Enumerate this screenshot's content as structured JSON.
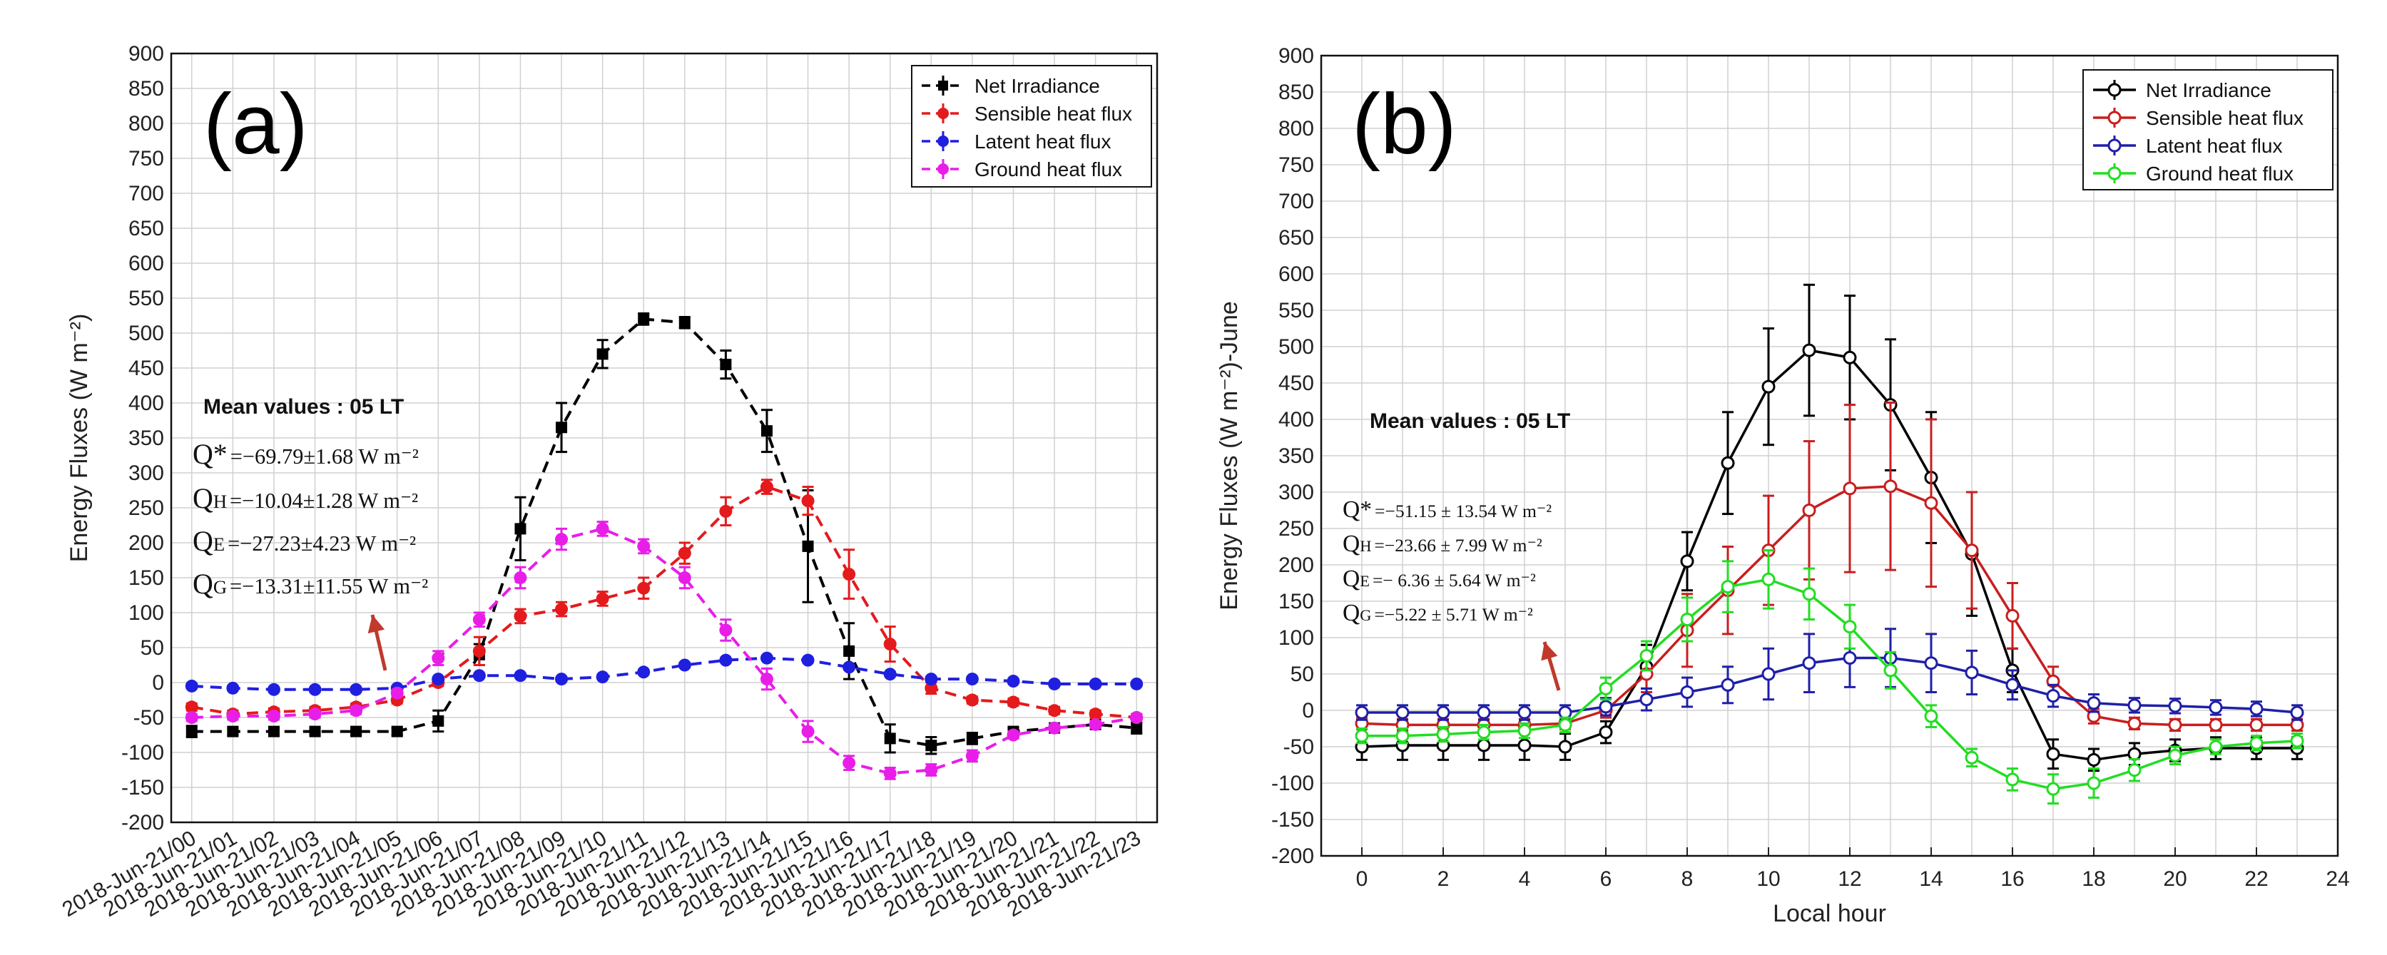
{
  "chart_data": [
    {
      "type": "line",
      "panel_label": "(a)",
      "ylabel": "Energy Fluxes (W m⁻²)",
      "xlabel": "",
      "ylim": [
        -200,
        900
      ],
      "yticks": [
        -200,
        -150,
        -100,
        -50,
        0,
        50,
        100,
        150,
        200,
        250,
        300,
        350,
        400,
        450,
        500,
        550,
        600,
        650,
        700,
        750,
        800,
        850,
        900
      ],
      "categories": [
        "2018-Jun-21/00",
        "2018-Jun-21/01",
        "2018-Jun-21/02",
        "2018-Jun-21/03",
        "2018-Jun-21/04",
        "2018-Jun-21/05",
        "2018-Jun-21/06",
        "2018-Jun-21/07",
        "2018-Jun-21/08",
        "2018-Jun-21/09",
        "2018-Jun-21/10",
        "2018-Jun-21/11",
        "2018-Jun-21/12",
        "2018-Jun-21/13",
        "2018-Jun-21/14",
        "2018-Jun-21/15",
        "2018-Jun-21/16",
        "2018-Jun-21/17",
        "2018-Jun-21/18",
        "2018-Jun-21/19",
        "2018-Jun-21/20",
        "2018-Jun-21/21",
        "2018-Jun-21/22",
        "2018-Jun-21/23"
      ],
      "grid": true,
      "legend_position": "top-right",
      "series": [
        {
          "name": "Net Irradiance",
          "color": "#000000",
          "dashed": true,
          "marker": "square",
          "values": [
            -70,
            -70,
            -70,
            -70,
            -70,
            -70,
            -55,
            40,
            220,
            365,
            470,
            520,
            515,
            455,
            360,
            195,
            45,
            -80,
            -90,
            -80,
            -70,
            -65,
            -60,
            -65
          ],
          "errors": [
            8,
            5,
            5,
            5,
            5,
            5,
            15,
            15,
            45,
            35,
            20,
            8,
            8,
            20,
            30,
            80,
            40,
            20,
            12,
            8,
            5,
            5,
            5,
            8
          ]
        },
        {
          "name": "Sensible heat flux",
          "color": "#e41a1c",
          "dashed": true,
          "marker": "circle",
          "values": [
            -35,
            -45,
            -42,
            -40,
            -35,
            -25,
            0,
            45,
            95,
            105,
            120,
            135,
            185,
            245,
            280,
            260,
            155,
            55,
            -8,
            -25,
            -28,
            -40,
            -45,
            -50
          ],
          "errors": [
            5,
            5,
            5,
            5,
            5,
            5,
            5,
            20,
            10,
            10,
            10,
            15,
            15,
            20,
            10,
            20,
            35,
            25,
            8,
            5,
            5,
            5,
            5,
            5
          ]
        },
        {
          "name": "Latent heat flux",
          "color": "#1f1fe0",
          "dashed": true,
          "marker": "circle",
          "values": [
            -5,
            -8,
            -10,
            -10,
            -10,
            -8,
            5,
            10,
            10,
            5,
            8,
            15,
            25,
            32,
            35,
            32,
            22,
            12,
            5,
            5,
            2,
            -2,
            -2,
            -2
          ],
          "errors": [
            3,
            3,
            3,
            3,
            3,
            3,
            3,
            3,
            3,
            3,
            3,
            3,
            3,
            3,
            3,
            3,
            3,
            3,
            3,
            3,
            3,
            3,
            3,
            3
          ]
        },
        {
          "name": "Ground heat flux",
          "color": "#e81ee8",
          "dashed": true,
          "marker": "circle",
          "values": [
            -50,
            -48,
            -48,
            -45,
            -40,
            -15,
            35,
            90,
            150,
            205,
            220,
            195,
            150,
            75,
            5,
            -70,
            -115,
            -130,
            -125,
            -105,
            -75,
            -65,
            -60,
            -50
          ],
          "errors": [
            5,
            5,
            5,
            5,
            5,
            5,
            10,
            10,
            15,
            15,
            10,
            10,
            15,
            15,
            15,
            15,
            10,
            8,
            8,
            8,
            5,
            5,
            5,
            5
          ]
        }
      ]
    },
    {
      "type": "line",
      "panel_label": "(b)",
      "ylabel": "Energy Fluxes (W m⁻²)-June",
      "xlabel": "Local hour",
      "ylim": [
        -200,
        900
      ],
      "xlim": [
        -1,
        24
      ],
      "yticks": [
        -200,
        -150,
        -100,
        -50,
        0,
        50,
        100,
        150,
        200,
        250,
        300,
        350,
        400,
        450,
        500,
        550,
        600,
        650,
        700,
        750,
        800,
        850,
        900
      ],
      "xticks": [
        0,
        2,
        4,
        6,
        8,
        10,
        12,
        14,
        16,
        18,
        20,
        22,
        24
      ],
      "grid": true,
      "legend_position": "top-right",
      "x": [
        0,
        1,
        2,
        3,
        4,
        5,
        6,
        7,
        8,
        9,
        10,
        11,
        12,
        13,
        14,
        15,
        16,
        17,
        18,
        19,
        20,
        21,
        22,
        23
      ],
      "series": [
        {
          "name": "Net Irradiance",
          "color": "#000000",
          "dashed": false,
          "marker": "open-circle",
          "values": [
            -50,
            -48,
            -48,
            -48,
            -48,
            -50,
            -30,
            60,
            205,
            340,
            445,
            495,
            485,
            420,
            320,
            215,
            55,
            -60,
            -68,
            -60,
            -55,
            -52,
            -52,
            -52
          ],
          "errors": [
            18,
            20,
            20,
            20,
            20,
            18,
            15,
            30,
            40,
            70,
            80,
            90,
            85,
            90,
            90,
            85,
            30,
            20,
            15,
            15,
            15,
            15,
            15,
            15
          ]
        },
        {
          "name": "Sensible heat flux",
          "color": "#c81e1e",
          "dashed": false,
          "marker": "open-circle",
          "values": [
            -18,
            -20,
            -20,
            -20,
            -20,
            -18,
            0,
            50,
            110,
            165,
            220,
            275,
            305,
            308,
            285,
            220,
            130,
            40,
            -8,
            -18,
            -20,
            -20,
            -20,
            -20
          ],
          "errors": [
            8,
            8,
            8,
            8,
            8,
            8,
            10,
            25,
            50,
            60,
            75,
            95,
            115,
            115,
            115,
            80,
            45,
            20,
            10,
            8,
            8,
            8,
            8,
            8
          ]
        },
        {
          "name": "Latent heat flux",
          "color": "#1f1fa8",
          "dashed": false,
          "marker": "open-circle",
          "values": [
            -3,
            -3,
            -3,
            -3,
            -3,
            -3,
            5,
            15,
            25,
            35,
            50,
            65,
            72,
            72,
            65,
            52,
            35,
            20,
            10,
            7,
            6,
            4,
            2,
            -3
          ],
          "errors": [
            10,
            10,
            10,
            10,
            10,
            10,
            12,
            15,
            20,
            25,
            35,
            40,
            40,
            40,
            40,
            30,
            20,
            15,
            12,
            10,
            10,
            10,
            10,
            10
          ]
        },
        {
          "name": "Ground heat flux",
          "color": "#22dd22",
          "dashed": false,
          "marker": "open-circle",
          "values": [
            -35,
            -35,
            -33,
            -30,
            -28,
            -20,
            30,
            75,
            125,
            170,
            180,
            160,
            115,
            55,
            -8,
            -65,
            -95,
            -108,
            -100,
            -82,
            -62,
            -50,
            -45,
            -42
          ],
          "errors": [
            10,
            10,
            10,
            10,
            10,
            10,
            15,
            20,
            30,
            35,
            40,
            35,
            30,
            25,
            15,
            12,
            15,
            20,
            20,
            15,
            12,
            10,
            10,
            10
          ]
        }
      ]
    }
  ],
  "annotations": {
    "a": {
      "mean_label": "Mean values : 05 LT",
      "lines": [
        {
          "sym": "Q*",
          "sub": "",
          "text": "=−69.79±1.68 W m⁻²"
        },
        {
          "sym": "Q",
          "sub": "H",
          "text": "=−10.04±1.28 W m⁻²"
        },
        {
          "sym": "Q",
          "sub": "E",
          "text": "=−27.23±4.23 W m⁻²"
        },
        {
          "sym": "Q",
          "sub": "G",
          "text": "=−13.31±11.55 W m⁻²"
        }
      ]
    },
    "b": {
      "mean_label": "Mean values : 05 LT",
      "lines": [
        {
          "sym": "Q*",
          "sub": "",
          "text": "=−51.15 ± 13.54  W m⁻²"
        },
        {
          "sym": "Q",
          "sub": "H",
          "text": "=−23.66 ± 7.99     W m⁻²"
        },
        {
          "sym": "Q",
          "sub": "E",
          "text": "=− 6.36  ±  5.64  W m⁻²"
        },
        {
          "sym": "Q",
          "sub": "G",
          "text": "=−5.22  ±  5.71  W m⁻²"
        }
      ]
    },
    "arrow_color": "#c0392b"
  }
}
